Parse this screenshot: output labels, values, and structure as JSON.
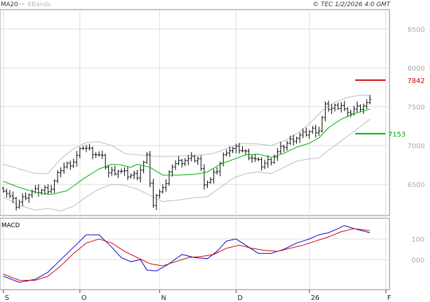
{
  "colors": {
    "background": "#ffffff",
    "panel_bg": "#f3f3f3",
    "grid": "#dddddd",
    "ohlc": "#000000",
    "ma20": "#00aa00",
    "bbands": "#bbbbbb",
    "macd_line": "#0000cc",
    "signal_line": "#cc0000",
    "resistance": "#cc0000",
    "support": "#00aa00",
    "axis_text": "#aaaaaa"
  },
  "chart_data": {
    "type": "ohlc",
    "title": "© TEC 1/2/2026 4:0 GMT",
    "legend": [
      {
        "name": "MA20",
        "color": "#00aa00"
      },
      {
        "name": "BBands",
        "color": "#bbbbbb"
      }
    ],
    "y_axis": {
      "ticks": [
        6500,
        7000,
        7500,
        8000,
        8500
      ],
      "tick_labels": [
        "6500",
        "7000",
        "7500",
        "8000",
        "8500"
      ],
      "ylim": [
        6100,
        8750
      ]
    },
    "x_axis": {
      "labels": [
        "S",
        "O",
        "N",
        "D",
        "26",
        "F"
      ],
      "label_index": [
        0,
        24,
        49,
        73,
        96,
        120
      ]
    },
    "n_bars": 120,
    "close_anchors": [
      [
        0,
        6450
      ],
      [
        4,
        6230
      ],
      [
        7,
        6360
      ],
      [
        10,
        6410
      ],
      [
        15,
        6450
      ],
      [
        18,
        6700
      ],
      [
        22,
        6800
      ],
      [
        25,
        6990
      ],
      [
        28,
        6920
      ],
      [
        31,
        6840
      ],
      [
        33,
        6650
      ],
      [
        36,
        6680
      ],
      [
        39,
        6620
      ],
      [
        42,
        6620
      ],
      [
        45,
        6850
      ],
      [
        47,
        6230
      ],
      [
        49,
        6440
      ],
      [
        51,
        6500
      ],
      [
        53,
        6750
      ],
      [
        57,
        6820
      ],
      [
        61,
        6830
      ],
      [
        63,
        6530
      ],
      [
        65,
        6550
      ],
      [
        67,
        6690
      ],
      [
        70,
        6940
      ],
      [
        74,
        6960
      ],
      [
        78,
        6850
      ],
      [
        81,
        6750
      ],
      [
        84,
        6820
      ],
      [
        88,
        7000
      ],
      [
        91,
        7090
      ],
      [
        94,
        7140
      ],
      [
        97,
        7200
      ],
      [
        99,
        7200
      ],
      [
        101,
        7500
      ],
      [
        103,
        7480
      ],
      [
        106,
        7530
      ],
      [
        108,
        7390
      ],
      [
        110,
        7470
      ],
      [
        113,
        7520
      ],
      [
        115,
        7560
      ]
    ],
    "ma20": [
      [
        0,
        6540
      ],
      [
        5,
        6460
      ],
      [
        10,
        6400
      ],
      [
        15,
        6370
      ],
      [
        20,
        6420
      ],
      [
        25,
        6570
      ],
      [
        30,
        6700
      ],
      [
        34,
        6760
      ],
      [
        37,
        6750
      ],
      [
        40,
        6720
      ],
      [
        42,
        6760
      ],
      [
        46,
        6720
      ],
      [
        50,
        6620
      ],
      [
        55,
        6620
      ],
      [
        60,
        6630
      ],
      [
        64,
        6660
      ],
      [
        68,
        6760
      ],
      [
        72,
        6820
      ],
      [
        76,
        6880
      ],
      [
        80,
        6890
      ],
      [
        84,
        6850
      ],
      [
        88,
        6900
      ],
      [
        92,
        6980
      ],
      [
        96,
        7030
      ],
      [
        99,
        7100
      ],
      [
        102,
        7230
      ],
      [
        106,
        7340
      ],
      [
        110,
        7410
      ],
      [
        115,
        7470
      ]
    ],
    "bb_upper": [
      [
        0,
        6760
      ],
      [
        5,
        6700
      ],
      [
        10,
        6640
      ],
      [
        14,
        6640
      ],
      [
        18,
        6830
      ],
      [
        22,
        6960
      ],
      [
        26,
        7040
      ],
      [
        30,
        7050
      ],
      [
        34,
        7000
      ],
      [
        38,
        6900
      ],
      [
        42,
        6880
      ],
      [
        46,
        6870
      ],
      [
        48,
        6860
      ],
      [
        52,
        6860
      ],
      [
        57,
        6870
      ],
      [
        62,
        6880
      ],
      [
        66,
        6900
      ],
      [
        70,
        6960
      ],
      [
        75,
        7030
      ],
      [
        80,
        7020
      ],
      [
        84,
        7000
      ],
      [
        88,
        7060
      ],
      [
        92,
        7150
      ],
      [
        96,
        7280
      ],
      [
        100,
        7450
      ],
      [
        104,
        7560
      ],
      [
        108,
        7620
      ],
      [
        112,
        7650
      ],
      [
        115,
        7640
      ]
    ],
    "bb_lower": [
      [
        0,
        6340
      ],
      [
        5,
        6230
      ],
      [
        10,
        6170
      ],
      [
        14,
        6190
      ],
      [
        18,
        6160
      ],
      [
        22,
        6220
      ],
      [
        26,
        6340
      ],
      [
        30,
        6440
      ],
      [
        34,
        6500
      ],
      [
        38,
        6490
      ],
      [
        42,
        6440
      ],
      [
        46,
        6360
      ],
      [
        50,
        6280
      ],
      [
        55,
        6300
      ],
      [
        60,
        6330
      ],
      [
        64,
        6340
      ],
      [
        68,
        6460
      ],
      [
        72,
        6580
      ],
      [
        76,
        6640
      ],
      [
        80,
        6660
      ],
      [
        84,
        6640
      ],
      [
        88,
        6720
      ],
      [
        92,
        6800
      ],
      [
        96,
        6830
      ],
      [
        99,
        6840
      ],
      [
        102,
        6940
      ],
      [
        106,
        7060
      ],
      [
        110,
        7180
      ],
      [
        115,
        7340
      ]
    ],
    "levels": [
      {
        "label": "7842",
        "value": 7842,
        "color": "#cc0000"
      },
      {
        "label": "7153",
        "value": 7153,
        "color": "#00aa00"
      }
    ],
    "macd": {
      "label": "MACD",
      "ticks": [
        0,
        100
      ],
      "tick_labels": [
        "000",
        "100"
      ],
      "ylim": [
        -145,
        200
      ],
      "macd_line": [
        [
          0,
          -80
        ],
        [
          5,
          -110
        ],
        [
          10,
          -95
        ],
        [
          14,
          -60
        ],
        [
          18,
          0
        ],
        [
          22,
          60
        ],
        [
          26,
          120
        ],
        [
          30,
          120
        ],
        [
          34,
          60
        ],
        [
          37,
          10
        ],
        [
          40,
          -10
        ],
        [
          43,
          0
        ],
        [
          45,
          -50
        ],
        [
          48,
          -55
        ],
        [
          52,
          -20
        ],
        [
          56,
          25
        ],
        [
          60,
          10
        ],
        [
          64,
          5
        ],
        [
          67,
          40
        ],
        [
          70,
          90
        ],
        [
          73,
          100
        ],
        [
          77,
          60
        ],
        [
          80,
          30
        ],
        [
          84,
          30
        ],
        [
          88,
          50
        ],
        [
          92,
          80
        ],
        [
          96,
          100
        ],
        [
          99,
          120
        ],
        [
          102,
          130
        ],
        [
          105,
          150
        ],
        [
          107,
          165
        ],
        [
          110,
          150
        ],
        [
          115,
          130
        ]
      ],
      "signal_line": [
        [
          0,
          -70
        ],
        [
          5,
          -100
        ],
        [
          10,
          -100
        ],
        [
          14,
          -80
        ],
        [
          18,
          -30
        ],
        [
          22,
          30
        ],
        [
          26,
          80
        ],
        [
          30,
          100
        ],
        [
          34,
          80
        ],
        [
          38,
          40
        ],
        [
          42,
          10
        ],
        [
          46,
          -20
        ],
        [
          50,
          -30
        ],
        [
          54,
          -10
        ],
        [
          58,
          10
        ],
        [
          62,
          15
        ],
        [
          66,
          25
        ],
        [
          70,
          55
        ],
        [
          74,
          70
        ],
        [
          78,
          55
        ],
        [
          82,
          45
        ],
        [
          86,
          40
        ],
        [
          90,
          55
        ],
        [
          94,
          70
        ],
        [
          98,
          90
        ],
        [
          102,
          110
        ],
        [
          106,
          135
        ],
        [
          110,
          150
        ],
        [
          115,
          140
        ]
      ]
    }
  }
}
